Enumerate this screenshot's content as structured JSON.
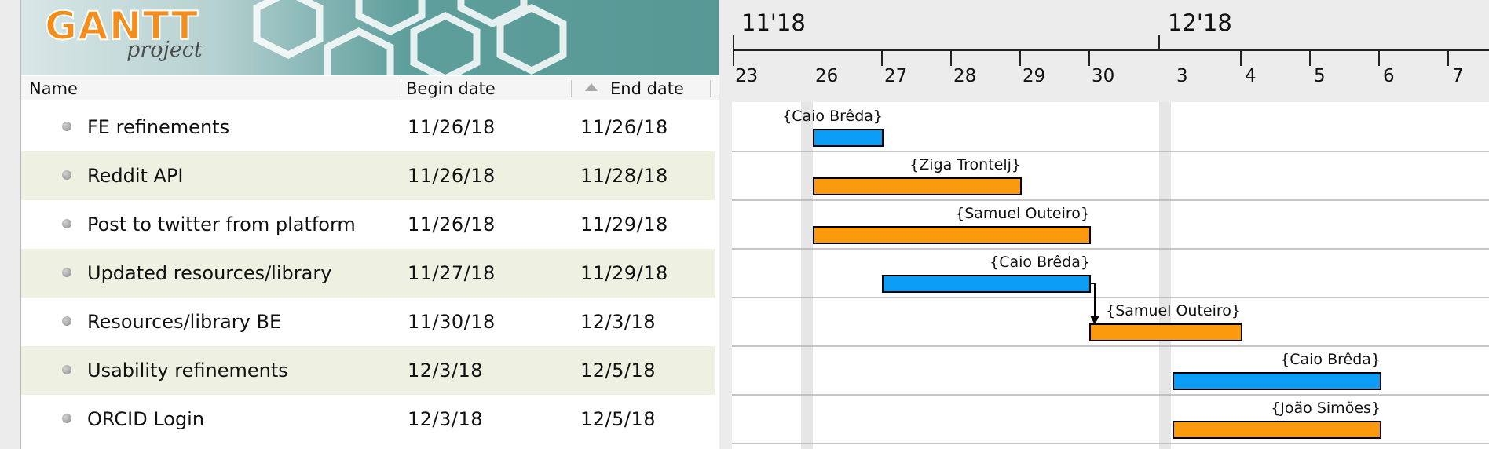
{
  "logo": {
    "text": "GANTT",
    "subtext": "project"
  },
  "table": {
    "columns": [
      {
        "label": "Name"
      },
      {
        "label": "Begin date"
      },
      {
        "label": "End date",
        "sorted": "ascending"
      }
    ],
    "rows": [
      {
        "name": "FE refinements",
        "begin": "11/26/18",
        "end": "11/26/18"
      },
      {
        "name": "Reddit API",
        "begin": "11/26/18",
        "end": "11/28/18"
      },
      {
        "name": "Post to twitter from platform",
        "begin": "11/26/18",
        "end": "11/29/18"
      },
      {
        "name": "Updated resources/library",
        "begin": "11/27/18",
        "end": "11/29/18"
      },
      {
        "name": "Resources/library BE",
        "begin": "11/30/18",
        "end": "12/3/18"
      },
      {
        "name": "Usability refinements",
        "begin": "12/3/18",
        "end": "12/5/18"
      },
      {
        "name": "ORCID Login",
        "begin": "12/3/18",
        "end": "12/5/18"
      }
    ]
  },
  "timeline": {
    "months": [
      "11'18",
      "12'18"
    ],
    "days": [
      "23",
      "26",
      "27",
      "28",
      "29",
      "30",
      "3",
      "4",
      "5",
      "6",
      "7"
    ]
  },
  "bars": [
    {
      "resource": "{Caio Brêda}",
      "start_day": "26",
      "end_day": "26",
      "color": "#0b9cf5"
    },
    {
      "resource": "{Ziga Trontelj}",
      "start_day": "26",
      "end_day": "28",
      "color": "#fb9a0c"
    },
    {
      "resource": "{Samuel Outeiro}",
      "start_day": "26",
      "end_day": "29",
      "color": "#fb9a0c"
    },
    {
      "resource": "{Caio Brêda}",
      "start_day": "27",
      "end_day": "29",
      "color": "#0b9cf5"
    },
    {
      "resource": "{Samuel Outeiro}",
      "start_day": "30",
      "end_day": "3",
      "color": "#fb9a0c"
    },
    {
      "resource": "{Caio Brêda}",
      "start_day": "3",
      "end_day": "5",
      "color": "#0b9cf5"
    },
    {
      "resource": "{João Simões}",
      "start_day": "3",
      "end_day": "5",
      "color": "#fb9a0c"
    }
  ],
  "colors": {
    "blue_task": "#0b9cf5",
    "orange_task": "#fb9a0c",
    "alt_row": "#eef0e1",
    "banner": "#579895"
  }
}
